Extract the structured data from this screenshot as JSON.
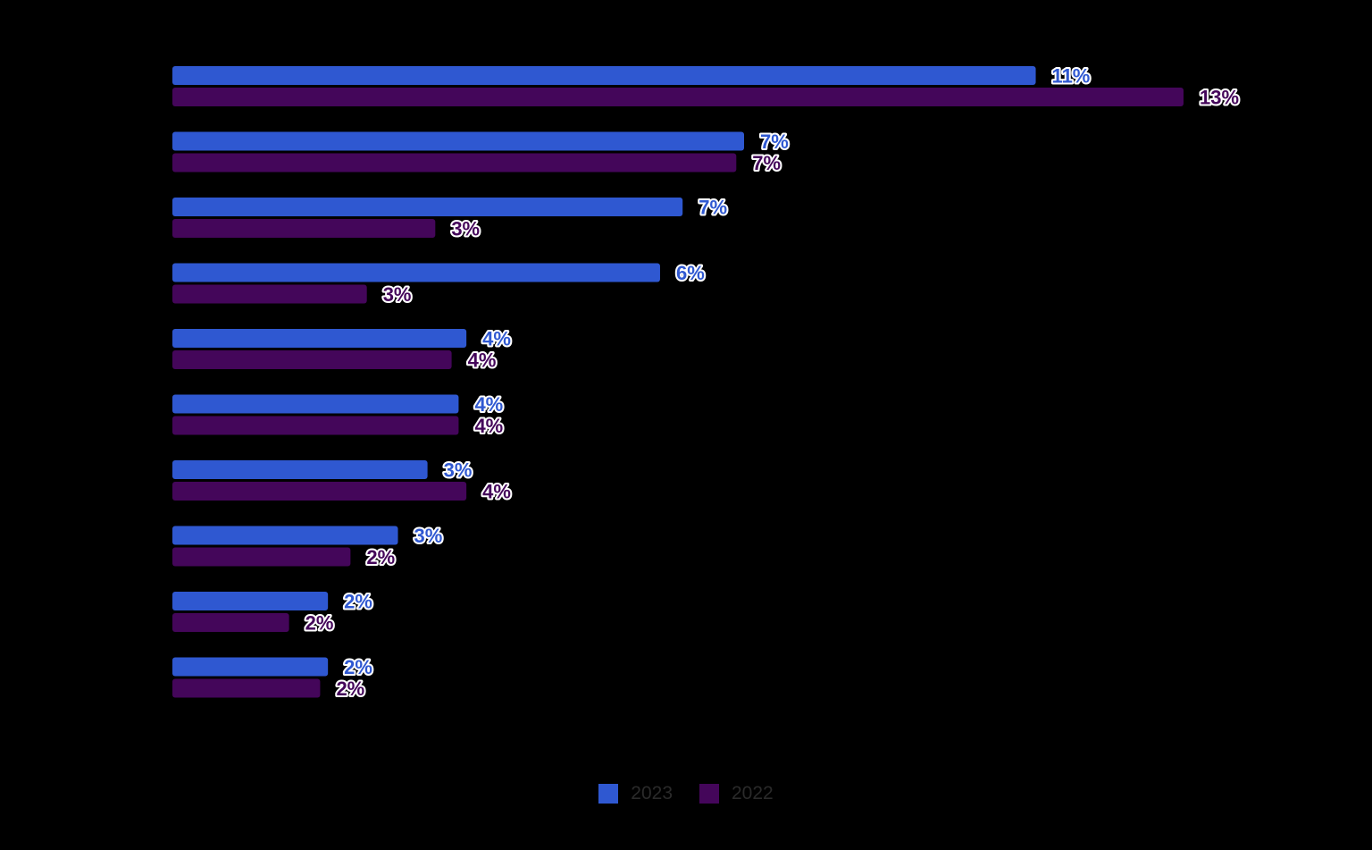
{
  "chart_data": {
    "type": "bar",
    "orientation": "horizontal",
    "title": "",
    "xlabel": "",
    "ylabel": "",
    "categories": [
      "",
      "",
      "",
      "",
      "",
      "",
      "",
      "",
      "",
      ""
    ],
    "xlim": [
      0,
      13
    ],
    "grid": false,
    "legend_position": "bottom-center",
    "series": [
      {
        "name": "2023",
        "color": "#2f58d1",
        "values": [
          11.1,
          7.35,
          6.56,
          6.27,
          3.78,
          3.68,
          3.28,
          2.9,
          2.0,
          2.0
        ],
        "labels": [
          "11%",
          "7%",
          "7%",
          "6%",
          "4%",
          "4%",
          "3%",
          "3%",
          "2%",
          "2%"
        ]
      },
      {
        "name": "2022",
        "color": "#44065a",
        "values": [
          13.0,
          7.25,
          3.38,
          2.5,
          3.59,
          3.68,
          3.78,
          2.29,
          1.5,
          1.9
        ],
        "labels": [
          "13%",
          "7%",
          "3%",
          "3%",
          "4%",
          "4%",
          "4%",
          "2%",
          "2%",
          "2%"
        ]
      }
    ]
  },
  "legend": {
    "items": [
      {
        "label": "2023",
        "color": "#2f58d1"
      },
      {
        "label": "2022",
        "color": "#44065a"
      }
    ]
  }
}
